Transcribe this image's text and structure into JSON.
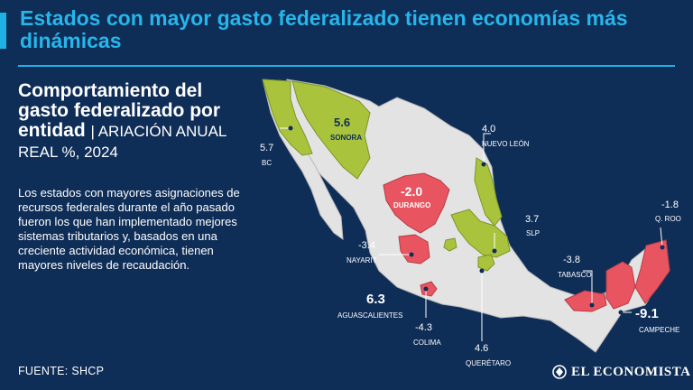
{
  "headline": "Estados con mayor gasto federalizado tienen economías más dinámicas",
  "subtitle": {
    "title": "Comportamiento del gasto federalizado por entidad",
    "unit": "| ARIACIÓN ANUAL REAL %, 2024"
  },
  "body": "Los estados con mayores asignaciones de recursos federales durante el año pasado fueron los que han implementado mejores sistemas tributarios y, basados en una creciente actividad económica, tienen mayores niveles de recaudación.",
  "source": "FUENTE: SHCP",
  "logo": "EL ECONOMISTA",
  "colors": {
    "background": "#0e2d57",
    "accent": "#1fb1e6",
    "positive_state": "#a9c43c",
    "negative_state": "#e85560",
    "other_state": "#e3e3e3"
  },
  "states": {
    "bc": {
      "name": "BC",
      "value": "5.7"
    },
    "sonora": {
      "name": "SONORA",
      "value": "5.6"
    },
    "nuevo_leon": {
      "name": "NUEVO LEÓN",
      "value": "4.0"
    },
    "durango": {
      "name": "DURANGO",
      "value": "-2.0"
    },
    "q_roo": {
      "name": "Q. ROO",
      "value": "-1.8"
    },
    "slp": {
      "name": "SLP",
      "value": "3.7"
    },
    "nayarit": {
      "name": "NAYARIT",
      "value": "-3.4"
    },
    "tabasco": {
      "name": "TABASCO",
      "value": "-3.8"
    },
    "aguascalientes": {
      "name": "AGUASCALIENTES",
      "value": "6.3"
    },
    "colima": {
      "name": "COLIMA",
      "value": "-4.3"
    },
    "campeche": {
      "name": "CAMPECHE",
      "value": "-9.1"
    },
    "queretaro": {
      "name": "QUERÉTARO",
      "value": "4.6"
    }
  }
}
